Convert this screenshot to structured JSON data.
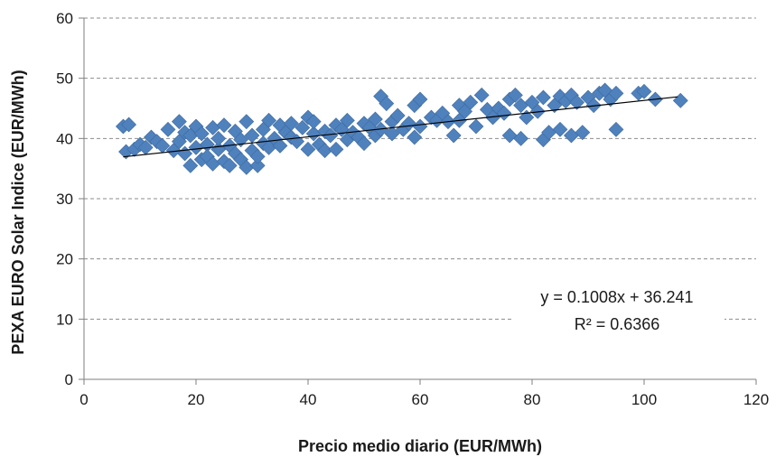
{
  "chart_data": {
    "type": "scatter",
    "title": "",
    "xlabel": "Precio medio diario (EUR/MWh)",
    "ylabel": "PEXA EURO Solar Indice (EUR/MWh)",
    "xlim": [
      0,
      120
    ],
    "ylim": [
      0,
      60
    ],
    "xticks": [
      0,
      20,
      40,
      60,
      80,
      100,
      120
    ],
    "yticks": [
      0,
      10,
      20,
      30,
      40,
      50,
      60
    ],
    "grid": "horizontal-dashed",
    "legend": "none",
    "marker": "diamond",
    "marker_color": "#4f81bd",
    "trendline_color": "#000000",
    "trendline": {
      "slope": 0.1008,
      "intercept": 36.241,
      "x_range": [
        7,
        106
      ]
    },
    "equation_label": "y = 0.1008x + 36.241",
    "r2_label": "R² = 0.6366",
    "series": [
      {
        "points": [
          [
            7,
            42
          ],
          [
            8,
            42.3
          ],
          [
            7.5,
            37.8
          ],
          [
            9,
            38.2
          ],
          [
            10,
            39
          ],
          [
            11,
            38.5
          ],
          [
            12,
            40.2
          ],
          [
            13,
            39.5
          ],
          [
            14,
            38.8
          ],
          [
            15,
            41.5
          ],
          [
            16,
            38
          ],
          [
            17,
            42.8
          ],
          [
            17,
            39.5
          ],
          [
            18,
            41
          ],
          [
            18,
            37.5
          ],
          [
            19,
            40.5
          ],
          [
            19,
            35.5
          ],
          [
            20,
            42
          ],
          [
            20,
            38.5
          ],
          [
            21,
            36.5
          ],
          [
            21,
            40.8
          ],
          [
            22,
            39
          ],
          [
            22,
            37
          ],
          [
            23,
            41.8
          ],
          [
            23,
            35.8
          ],
          [
            24,
            38.2
          ],
          [
            24,
            40
          ],
          [
            25,
            36.2
          ],
          [
            25,
            42.2
          ],
          [
            26,
            38.8
          ],
          [
            26,
            35.5
          ],
          [
            27,
            41.2
          ],
          [
            27,
            37.5
          ],
          [
            28,
            39.8
          ],
          [
            28,
            36.5
          ],
          [
            29,
            35.2
          ],
          [
            29,
            42.8
          ],
          [
            30,
            38
          ],
          [
            30,
            40.5
          ],
          [
            31,
            35.5
          ],
          [
            31,
            37
          ],
          [
            32,
            41.5
          ],
          [
            32,
            39.2
          ],
          [
            33,
            43
          ],
          [
            33,
            38.5
          ],
          [
            34,
            40
          ],
          [
            35,
            42.2
          ],
          [
            35,
            38.8
          ],
          [
            36,
            41
          ],
          [
            37,
            40.2
          ],
          [
            37,
            42.5
          ],
          [
            38,
            39.5
          ],
          [
            39,
            41.8
          ],
          [
            40,
            43.5
          ],
          [
            40,
            38.2
          ],
          [
            41,
            40.8
          ],
          [
            41,
            42.8
          ],
          [
            42,
            39
          ],
          [
            43,
            41.2
          ],
          [
            43,
            38
          ],
          [
            44,
            40.5
          ],
          [
            45,
            42.2
          ],
          [
            45,
            38.2
          ],
          [
            46,
            41.5
          ],
          [
            47,
            39.8
          ],
          [
            47,
            43
          ],
          [
            48,
            41
          ],
          [
            49,
            40.2
          ],
          [
            50,
            42.5
          ],
          [
            50,
            39.2
          ],
          [
            51,
            41.8
          ],
          [
            52,
            43.2
          ],
          [
            52,
            40.5
          ],
          [
            53,
            47
          ],
          [
            53,
            41.5
          ],
          [
            54,
            45.8
          ],
          [
            55,
            42.8
          ],
          [
            55,
            40.8
          ],
          [
            56,
            43.8
          ],
          [
            57,
            41.5
          ],
          [
            58,
            42.5
          ],
          [
            59,
            40.2
          ],
          [
            59,
            45.5
          ],
          [
            60,
            46.5
          ],
          [
            60,
            42
          ],
          [
            62,
            43.5
          ],
          [
            63,
            43
          ],
          [
            64,
            44.2
          ],
          [
            65,
            42.8
          ],
          [
            66,
            40.5
          ],
          [
            67,
            45.5
          ],
          [
            67,
            43
          ],
          [
            68,
            44.5
          ],
          [
            69,
            46
          ],
          [
            70,
            42
          ],
          [
            71,
            47.2
          ],
          [
            72,
            44.8
          ],
          [
            73,
            43.5
          ],
          [
            74,
            45
          ],
          [
            75,
            44.2
          ],
          [
            76,
            40.5
          ],
          [
            76,
            46.5
          ],
          [
            77,
            47.2
          ],
          [
            78,
            40
          ],
          [
            78,
            45.5
          ],
          [
            79,
            43.5
          ],
          [
            80,
            46
          ],
          [
            81,
            44.5
          ],
          [
            82,
            39.8
          ],
          [
            82,
            46.8
          ],
          [
            83,
            41
          ],
          [
            84,
            45.5
          ],
          [
            85,
            47
          ],
          [
            85,
            41.5
          ],
          [
            86,
            46.2
          ],
          [
            87,
            40.5
          ],
          [
            87,
            47.2
          ],
          [
            88,
            46
          ],
          [
            89,
            41
          ],
          [
            90,
            46.8
          ],
          [
            91,
            45.5
          ],
          [
            92,
            47.5
          ],
          [
            93,
            48
          ],
          [
            94,
            46.5
          ],
          [
            95,
            41.5
          ],
          [
            95,
            47.5
          ],
          [
            99,
            47.5
          ],
          [
            100,
            47.8
          ],
          [
            102,
            46.5
          ],
          [
            106.5,
            46.3
          ]
        ]
      }
    ]
  }
}
